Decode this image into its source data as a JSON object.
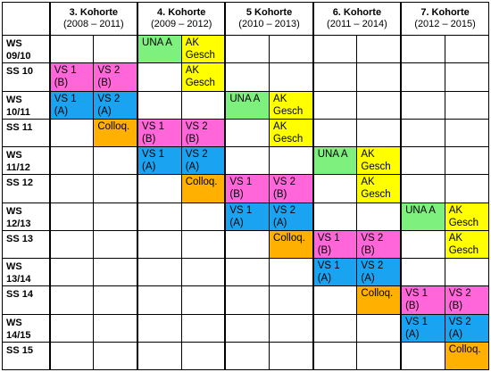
{
  "colors": {
    "UNA": "#7ef07e",
    "AK": "#ffff00",
    "VS_B": "#ff66d9",
    "VS_A": "#1aa3f0",
    "Colloq": "#ffb000"
  },
  "kohorten": [
    {
      "name": "3. Kohorte",
      "years": "(2008 – 2011)"
    },
    {
      "name": "4. Kohorte",
      "years": "(2009 – 2012)"
    },
    {
      "name": "5 Kohorte",
      "years": "(2010 – 2013)"
    },
    {
      "name": "6. Kohorte",
      "years": "(2011 – 2014)"
    },
    {
      "name": "7. Kohorte",
      "years": "(2012 – 2015)"
    }
  ],
  "semesters": [
    "WS\n09/10",
    "SS 10",
    "WS\n10/11",
    "SS 11",
    "WS\n11/12",
    "SS 12",
    "WS\n12/13",
    "SS 13",
    "WS\n13/14",
    "SS 14",
    "WS\n14/15",
    "SS 15"
  ],
  "cells": [
    [
      "",
      "",
      "UNA A",
      "AK\nGesch",
      "",
      "",
      "",
      "",
      "",
      ""
    ],
    [
      "VS 1\n(B)",
      "VS 2\n(B)",
      "",
      "AK\nGesch",
      "",
      "",
      "",
      "",
      "",
      ""
    ],
    [
      "VS 1\n(A)",
      "VS 2\n(A)",
      "",
      "",
      "UNA A",
      "AK\nGesch",
      "",
      "",
      "",
      ""
    ],
    [
      "",
      "Colloq.",
      "VS 1\n(B)",
      "VS 2\n(B)",
      "",
      "AK\nGesch",
      "",
      "",
      "",
      ""
    ],
    [
      "",
      "",
      "VS 1\n(A)",
      "VS 2\n(A)",
      "",
      "",
      "UNA A",
      "AK\nGesch",
      "",
      ""
    ],
    [
      "",
      "",
      "",
      "Colloq.",
      "VS 1\n(B)",
      "VS 2\n(B)",
      "",
      "AK\nGesch",
      "",
      ""
    ],
    [
      "",
      "",
      "",
      "",
      "VS 1\n(A)",
      "VS 2\n(A)",
      "",
      "",
      "UNA A",
      "AK\nGesch"
    ],
    [
      "",
      "",
      "",
      "",
      "",
      "Colloq.",
      "VS 1\n(B)",
      "VS 2\n(B)",
      "",
      "AK\nGesch"
    ],
    [
      "",
      "",
      "",
      "",
      "",
      "",
      "VS 1\n(A)",
      "VS 2\n(A)",
      "",
      ""
    ],
    [
      "",
      "",
      "",
      "",
      "",
      "",
      "",
      "Colloq.",
      "VS 1\n(B)",
      "VS 2\n(B)"
    ],
    [
      "",
      "",
      "",
      "",
      "",
      "",
      "",
      "",
      "VS 1\n(A)",
      "VS 2\n(A)"
    ],
    [
      "",
      "",
      "",
      "",
      "",
      "",
      "",
      "",
      "",
      "Colloq."
    ]
  ]
}
